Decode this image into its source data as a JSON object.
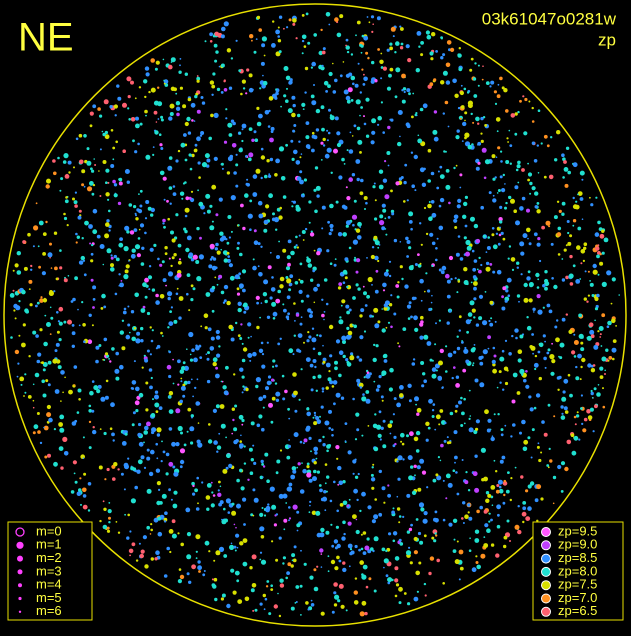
{
  "header": {
    "direction": "NE",
    "frame_id": "03k61047o0281w",
    "mode": "zp"
  },
  "magnitude_legend": [
    {
      "label": "m=0"
    },
    {
      "label": "m=1"
    },
    {
      "label": "m=2"
    },
    {
      "label": "m=3"
    },
    {
      "label": "m=4"
    },
    {
      "label": "m=5"
    },
    {
      "label": "m=6"
    }
  ],
  "zp_legend": [
    {
      "label": "zp=9.5",
      "color": "#ff55ff"
    },
    {
      "label": "zp=9.0",
      "color": "#c040ff"
    },
    {
      "label": "zp=8.5",
      "color": "#3090ff"
    },
    {
      "label": "zp=8.0",
      "color": "#20e0d0"
    },
    {
      "label": "zp=7.5",
      "color": "#d8e000"
    },
    {
      "label": "zp=7.0",
      "color": "#ff9020"
    },
    {
      "label": "zp=6.5",
      "color": "#ff6070"
    }
  ]
}
